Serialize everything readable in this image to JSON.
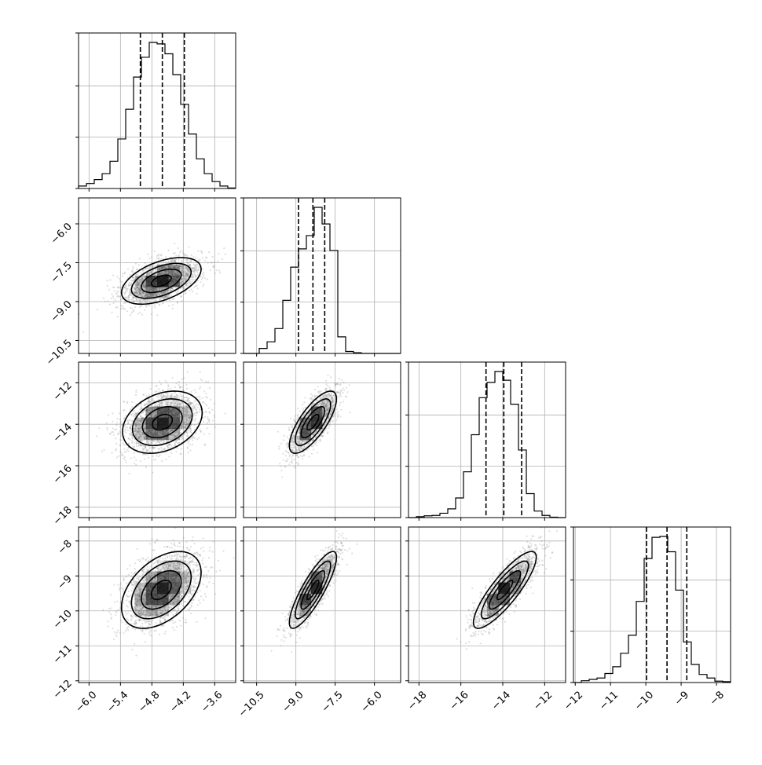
{
  "chart_data": {
    "type": "corner",
    "parameters": 4,
    "ticks": [
      {
        "values": [
          -6.0,
          -5.4,
          -4.8,
          -4.2,
          -3.6
        ],
        "labels": [
          "−6.0",
          "−5.4",
          "−4.8",
          "−4.2",
          "−3.6"
        ]
      },
      {
        "values": [
          -10.5,
          -9.0,
          -7.5,
          -6.0
        ],
        "labels": [
          "−10.5",
          "−9.0",
          "−7.5",
          "−6.0"
        ]
      },
      {
        "values": [
          -18,
          -16,
          -14,
          -12
        ],
        "labels": [
          "−18",
          "−16",
          "−14",
          "−12"
        ]
      },
      {
        "values": [
          -12,
          -11,
          -10,
          -9,
          -8
        ],
        "labels": [
          "−12",
          "−11",
          "−10",
          "−9",
          "−8"
        ]
      }
    ],
    "ranges": [
      [
        -6.2,
        -3.2
      ],
      [
        -11.0,
        -5.0
      ],
      [
        -18.5,
        -11.0
      ],
      [
        -12.05,
        -7.6
      ]
    ],
    "grid": true,
    "quantiles": [
      0.16,
      0.5,
      0.84
    ],
    "histograms": [
      {
        "parameter": 0,
        "edges": [
          -6.2,
          -6.05,
          -5.9,
          -5.75,
          -5.6,
          -5.45,
          -5.3,
          -5.15,
          -5.0,
          -4.85,
          -4.7,
          -4.55,
          -4.4,
          -4.25,
          -4.1,
          -3.95,
          -3.8,
          -3.65,
          -3.5,
          -3.35,
          -3.2
        ],
        "counts": [
          5,
          10,
          18,
          30,
          55,
          100,
          160,
          225,
          265,
          295,
          292,
          272,
          230,
          170,
          110,
          60,
          30,
          14,
          5,
          1
        ],
        "quantile_values": [
          -5.02,
          -4.6,
          -4.18
        ]
      },
      {
        "parameter": 1,
        "edges": [
          -11.0,
          -10.7,
          -10.4,
          -10.1,
          -9.8,
          -9.5,
          -9.2,
          -8.9,
          -8.6,
          -8.3,
          -8.0,
          -7.7,
          -7.4,
          -7.1,
          -6.8,
          -6.5,
          -6.2,
          -5.9,
          -5.6,
          -5.3,
          -5.0
        ],
        "counts": [
          0,
          0,
          15,
          35,
          75,
          160,
          260,
          315,
          355,
          440,
          390,
          310,
          50,
          6,
          2,
          0,
          0,
          0,
          0,
          0
        ],
        "quantile_values": [
          -8.9,
          -8.35,
          -7.9
        ]
      },
      {
        "parameter": 2,
        "edges": [
          -18.5,
          -18.125,
          -17.75,
          -17.375,
          -17.0,
          -16.625,
          -16.25,
          -15.875,
          -15.5,
          -15.125,
          -14.75,
          -14.375,
          -14.0,
          -13.625,
          -13.25,
          -12.875,
          -12.5,
          -12.125,
          -11.75,
          -11.375,
          -11.0
        ],
        "counts": [
          0,
          2,
          4,
          5,
          10,
          20,
          45,
          105,
          190,
          275,
          310,
          335,
          315,
          260,
          155,
          55,
          15,
          5,
          1,
          0
        ],
        "quantile_values": [
          -14.8,
          -13.95,
          -13.1
        ]
      },
      {
        "parameter": 3,
        "edges": [
          -12.05,
          -11.8275,
          -11.605,
          -11.3825,
          -11.16,
          -10.9375,
          -10.715,
          -10.4925,
          -10.27,
          -10.0475,
          -9.825,
          -9.6025,
          -9.38,
          -9.1575,
          -8.935,
          -8.7125,
          -8.49,
          -8.2675,
          -8.045,
          -7.8225,
          -7.6
        ],
        "counts": [
          0,
          4,
          7,
          10,
          20,
          35,
          65,
          105,
          180,
          275,
          322,
          324,
          290,
          205,
          90,
          40,
          18,
          10,
          3,
          2
        ],
        "quantile_values": [
          -9.98,
          -9.4,
          -8.84
        ]
      }
    ],
    "pairs": [
      {
        "x": 0,
        "y": 1,
        "mean": [
          -4.62,
          -8.2
        ],
        "sd": [
          0.38,
          0.45
        ],
        "rho": 0.5
      },
      {
        "x": 0,
        "y": 2,
        "mean": [
          -4.6,
          -13.9
        ],
        "sd": [
          0.38,
          0.75
        ],
        "rho": 0.3
      },
      {
        "x": 1,
        "y": 2,
        "mean": [
          -8.35,
          -13.9
        ],
        "sd": [
          0.45,
          0.75
        ],
        "rho": 0.75
      },
      {
        "x": 0,
        "y": 3,
        "mean": [
          -4.62,
          -9.4
        ],
        "sd": [
          0.38,
          0.55
        ],
        "rho": 0.45
      },
      {
        "x": 1,
        "y": 3,
        "mean": [
          -8.35,
          -9.4
        ],
        "sd": [
          0.45,
          0.55
        ],
        "rho": 0.85
      },
      {
        "x": 2,
        "y": 3,
        "mean": [
          -13.9,
          -9.4
        ],
        "sd": [
          0.75,
          0.55
        ],
        "rho": 0.85
      }
    ],
    "contour_levels": [
      0.5,
      1.0,
      1.5,
      2.0
    ],
    "colors": {
      "line": "#000000",
      "grid": "#b0b0b0",
      "points": "#8c8c8c",
      "density": "#000000"
    }
  }
}
